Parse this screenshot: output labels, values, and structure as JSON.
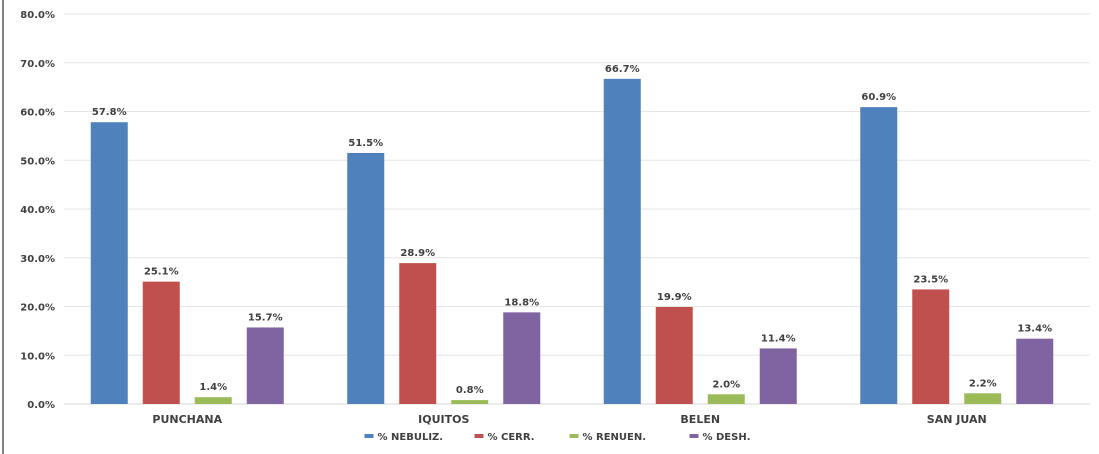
{
  "chart_data": {
    "type": "bar",
    "title": "",
    "xlabel": "",
    "ylabel": "",
    "ylim": [
      0,
      80
    ],
    "y_ticks": [
      "0.0%",
      "10.0%",
      "20.0%",
      "30.0%",
      "40.0%",
      "50.0%",
      "60.0%",
      "70.0%",
      "80.0%"
    ],
    "categories": [
      "PUNCHANA",
      "IQUITOS",
      "BELEN",
      "SAN JUAN"
    ],
    "series": [
      {
        "name": "% NEBULIZ.",
        "color": "#4F81BD",
        "values": [
          57.8,
          51.5,
          66.7,
          60.9
        ],
        "labels": [
          "57.8%",
          "51.5%",
          "66.7%",
          "60.9%"
        ]
      },
      {
        "name": "% CERR.",
        "color": "#C0504D",
        "values": [
          25.1,
          28.9,
          19.9,
          23.5
        ],
        "labels": [
          "25.1%",
          "28.9%",
          "19.9%",
          "23.5%"
        ]
      },
      {
        "name": "% RENUEN.",
        "color": "#9BBB59",
        "values": [
          1.4,
          0.8,
          2.0,
          2.2
        ],
        "labels": [
          "1.4%",
          "0.8%",
          "2.0%",
          "2.2%"
        ]
      },
      {
        "name": "% DESH.",
        "color": "#8064A2",
        "values": [
          15.7,
          18.8,
          11.4,
          13.4
        ],
        "labels": [
          "15.7%",
          "18.8%",
          "11.4%",
          "13.4%"
        ]
      }
    ],
    "legend_position": "bottom",
    "grid": true
  }
}
